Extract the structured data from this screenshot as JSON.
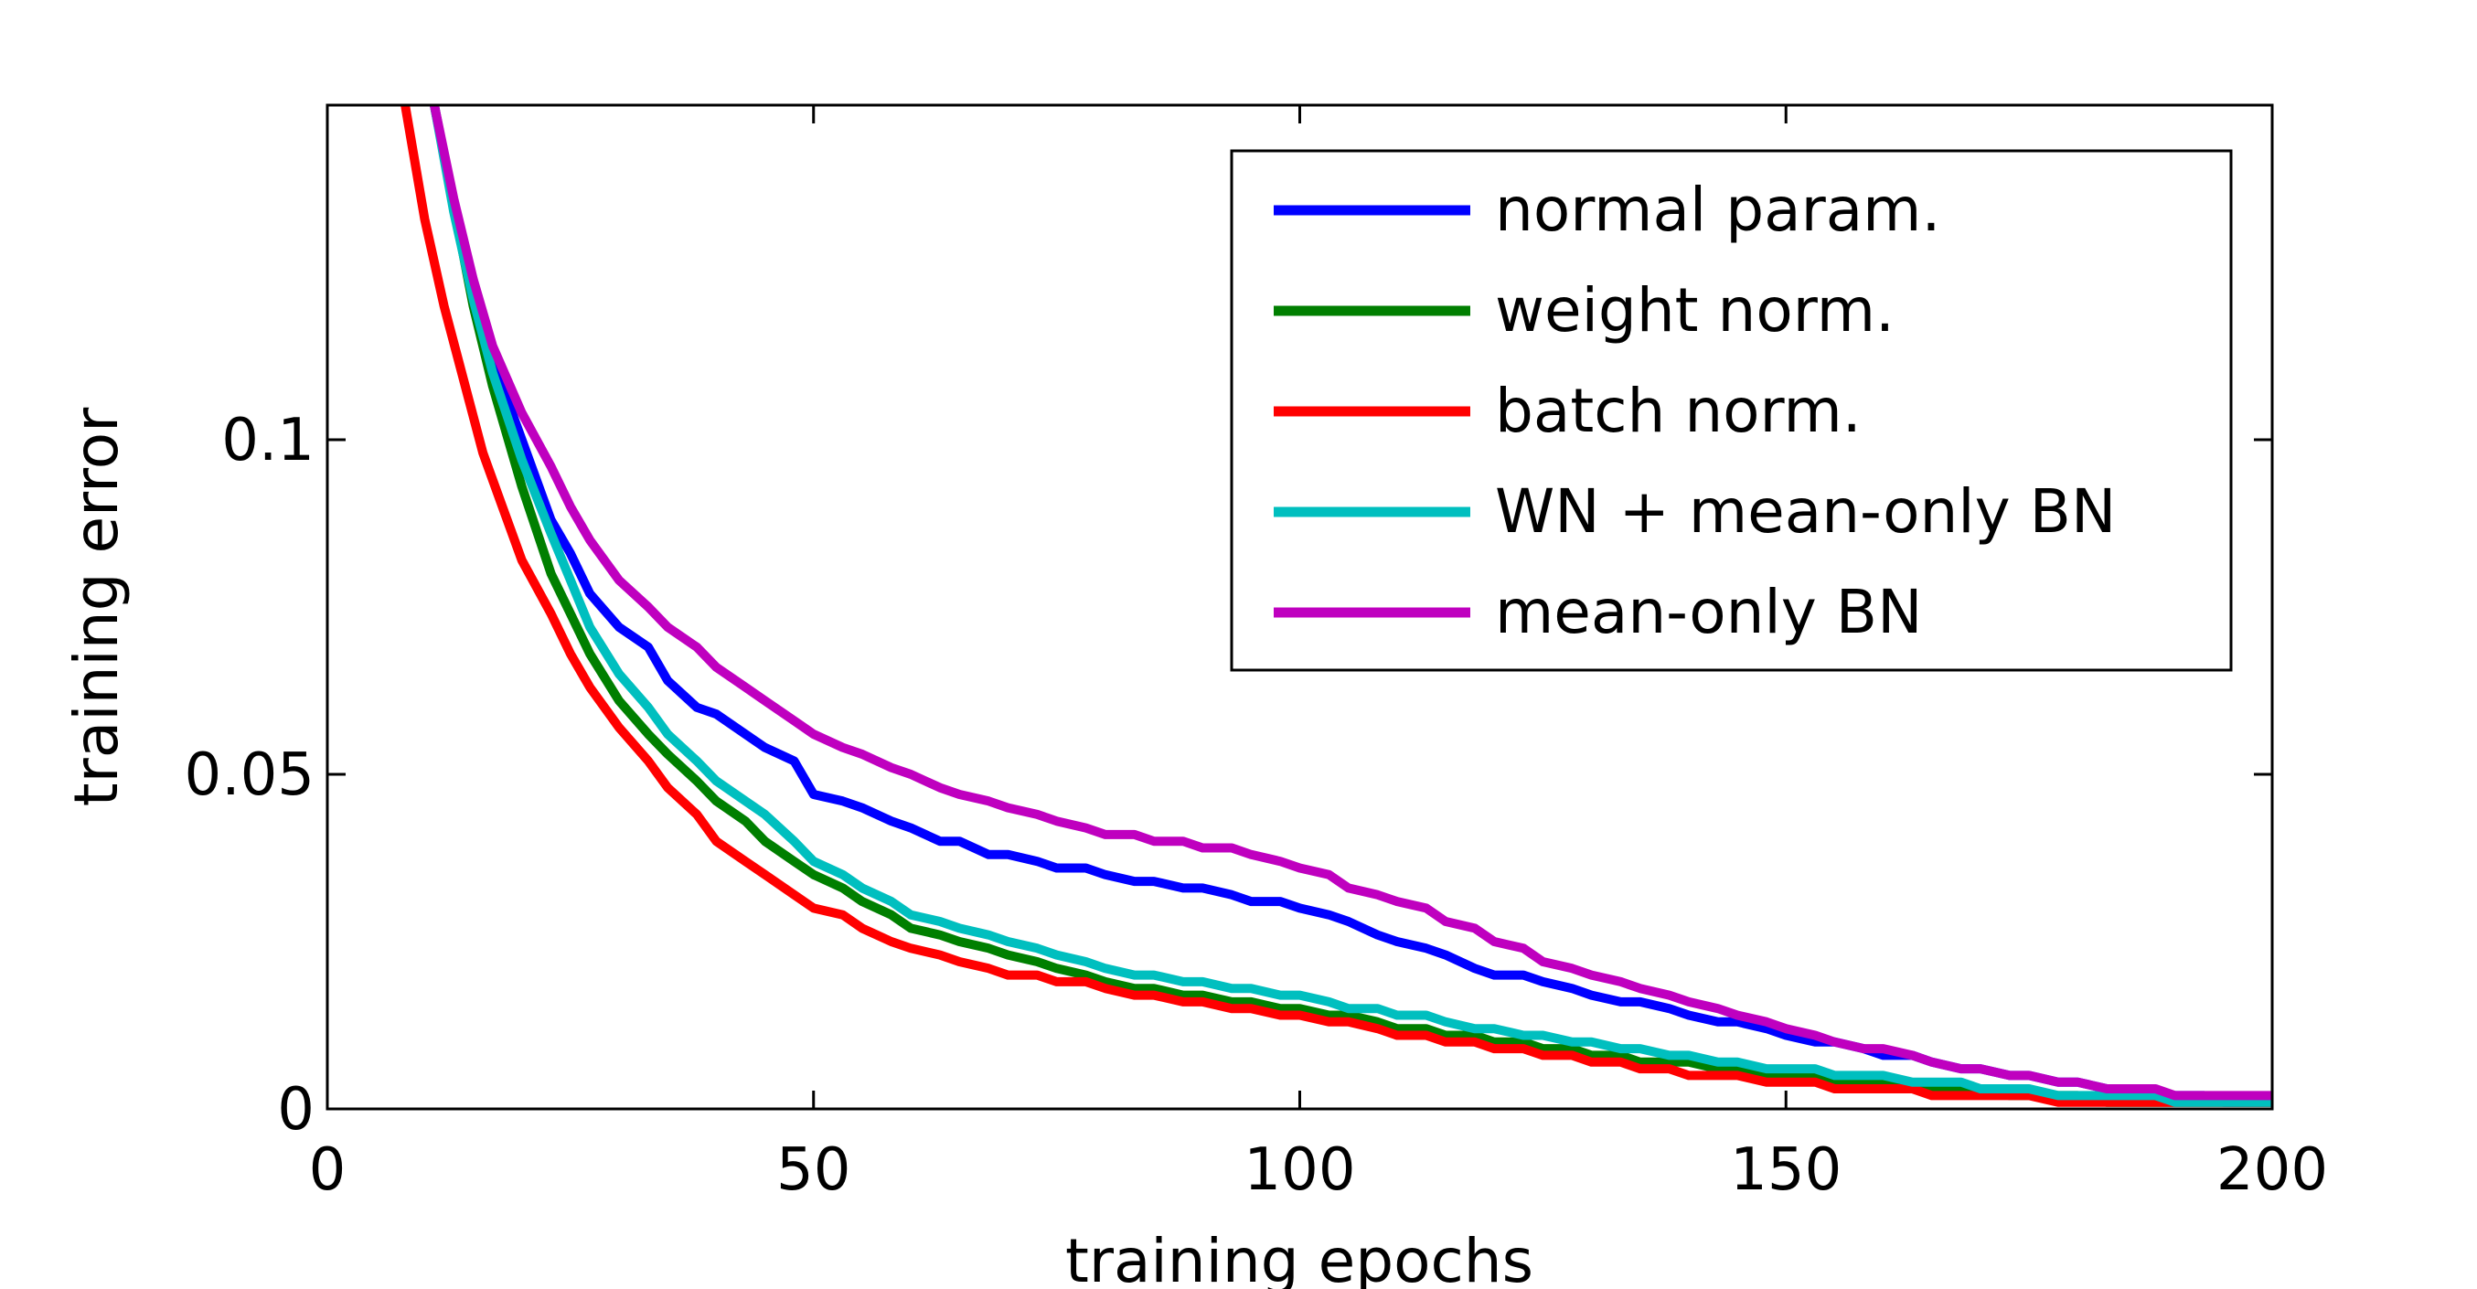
{
  "chart_data": {
    "type": "line",
    "title": "",
    "xlabel": "training epochs",
    "ylabel": "training error",
    "xlim": [
      0,
      200
    ],
    "ylim": [
      0,
      0.15
    ],
    "xticks": [
      0,
      50,
      100,
      150,
      200
    ],
    "xtick_labels": [
      "0",
      "50",
      "100",
      "150",
      "200"
    ],
    "yticks": [
      0,
      0.05,
      0.1
    ],
    "ytick_labels": [
      "0",
      "0.05",
      "0.1"
    ],
    "grid": false,
    "legend_position": "top-right",
    "series": [
      {
        "name": "normal param.",
        "color": "#0000ff",
        "x": [
          11,
          13,
          15,
          17,
          20,
          23,
          25,
          27,
          30,
          33,
          35,
          38,
          40,
          43,
          45,
          48,
          50,
          53,
          55,
          58,
          60,
          63,
          65,
          68,
          70,
          73,
          75,
          78,
          80,
          83,
          85,
          88,
          90,
          93,
          95,
          98,
          100,
          103,
          105,
          108,
          110,
          113,
          115,
          118,
          120,
          123,
          125,
          128,
          130,
          133,
          135,
          138,
          140,
          143,
          145,
          148,
          150,
          153,
          155,
          158,
          160,
          163,
          165,
          168,
          170,
          173,
          175,
          178,
          180,
          183,
          185,
          188,
          190,
          193,
          195,
          198,
          200
        ],
        "y": [
          0.15,
          0.135,
          0.122,
          0.112,
          0.1,
          0.088,
          0.083,
          0.077,
          0.072,
          0.069,
          0.064,
          0.06,
          0.059,
          0.056,
          0.054,
          0.052,
          0.047,
          0.046,
          0.045,
          0.043,
          0.042,
          0.04,
          0.04,
          0.038,
          0.038,
          0.037,
          0.036,
          0.036,
          0.035,
          0.034,
          0.034,
          0.033,
          0.033,
          0.032,
          0.031,
          0.031,
          0.03,
          0.029,
          0.028,
          0.026,
          0.025,
          0.024,
          0.023,
          0.021,
          0.02,
          0.02,
          0.019,
          0.018,
          0.017,
          0.016,
          0.016,
          0.015,
          0.014,
          0.013,
          0.013,
          0.012,
          0.011,
          0.01,
          0.01,
          0.009,
          0.008,
          0.008,
          0.007,
          0.006,
          0.006,
          0.005,
          0.005,
          0.004,
          0.004,
          0.003,
          0.003,
          0.002,
          0.002,
          0.002,
          0.001,
          0.001,
          0.001
        ]
      },
      {
        "name": "weight norm.",
        "color": "#007f00",
        "x": [
          11,
          13,
          15,
          17,
          20,
          23,
          25,
          27,
          30,
          33,
          35,
          38,
          40,
          43,
          45,
          48,
          50,
          53,
          55,
          58,
          60,
          63,
          65,
          68,
          70,
          73,
          75,
          78,
          80,
          83,
          85,
          88,
          90,
          93,
          95,
          98,
          100,
          103,
          105,
          108,
          110,
          113,
          115,
          118,
          120,
          123,
          125,
          128,
          130,
          133,
          135,
          138,
          140,
          143,
          145,
          148,
          150,
          153,
          155,
          158,
          160,
          163,
          165,
          168,
          170,
          173,
          175,
          178,
          180,
          183,
          185,
          188,
          190,
          193,
          195,
          198,
          200
        ],
        "y": [
          0.15,
          0.135,
          0.12,
          0.108,
          0.093,
          0.08,
          0.074,
          0.068,
          0.061,
          0.056,
          0.053,
          0.049,
          0.046,
          0.043,
          0.04,
          0.037,
          0.035,
          0.033,
          0.031,
          0.029,
          0.027,
          0.026,
          0.025,
          0.024,
          0.023,
          0.022,
          0.021,
          0.02,
          0.019,
          0.018,
          0.018,
          0.017,
          0.017,
          0.016,
          0.016,
          0.015,
          0.015,
          0.014,
          0.014,
          0.013,
          0.012,
          0.012,
          0.011,
          0.011,
          0.01,
          0.01,
          0.009,
          0.009,
          0.008,
          0.008,
          0.007,
          0.007,
          0.007,
          0.006,
          0.006,
          0.005,
          0.005,
          0.005,
          0.004,
          0.004,
          0.004,
          0.003,
          0.003,
          0.003,
          0.003,
          0.002,
          0.002,
          0.002,
          0.002,
          0.001,
          0.001,
          0.001,
          0.001,
          0.001,
          0.001,
          0.001,
          0.001
        ]
      },
      {
        "name": "batch norm.",
        "color": "#ff0000",
        "x": [
          8,
          10,
          12,
          14,
          16,
          18,
          20,
          23,
          25,
          27,
          30,
          33,
          35,
          38,
          40,
          43,
          45,
          48,
          50,
          53,
          55,
          58,
          60,
          63,
          65,
          68,
          70,
          73,
          75,
          78,
          80,
          83,
          85,
          88,
          90,
          93,
          95,
          98,
          100,
          103,
          105,
          108,
          110,
          113,
          115,
          118,
          120,
          123,
          125,
          128,
          130,
          133,
          135,
          138,
          140,
          143,
          145,
          148,
          150,
          153,
          155,
          158,
          160,
          163,
          165,
          168,
          170,
          173,
          175,
          178,
          180,
          183,
          185,
          188,
          190,
          193,
          195,
          198,
          200
        ],
        "y": [
          0.15,
          0.133,
          0.12,
          0.109,
          0.098,
          0.09,
          0.082,
          0.074,
          0.068,
          0.063,
          0.057,
          0.052,
          0.048,
          0.044,
          0.04,
          0.037,
          0.035,
          0.032,
          0.03,
          0.029,
          0.027,
          0.025,
          0.024,
          0.023,
          0.022,
          0.021,
          0.02,
          0.02,
          0.019,
          0.019,
          0.018,
          0.017,
          0.017,
          0.016,
          0.016,
          0.015,
          0.015,
          0.014,
          0.014,
          0.013,
          0.013,
          0.012,
          0.011,
          0.011,
          0.01,
          0.01,
          0.009,
          0.009,
          0.008,
          0.008,
          0.007,
          0.007,
          0.006,
          0.006,
          0.005,
          0.005,
          0.005,
          0.004,
          0.004,
          0.004,
          0.003,
          0.003,
          0.003,
          0.003,
          0.002,
          0.002,
          0.002,
          0.002,
          0.002,
          0.001,
          0.001,
          0.001,
          0.001,
          0.001,
          0.001,
          0.001,
          0.001,
          0.001,
          0.001
        ]
      },
      {
        "name": "WN + mean-only BN",
        "color": "#00bfbf",
        "x": [
          11,
          13,
          15,
          17,
          20,
          23,
          25,
          27,
          30,
          33,
          35,
          38,
          40,
          43,
          45,
          48,
          50,
          53,
          55,
          58,
          60,
          63,
          65,
          68,
          70,
          73,
          75,
          78,
          80,
          83,
          85,
          88,
          90,
          93,
          95,
          98,
          100,
          103,
          105,
          108,
          110,
          113,
          115,
          118,
          120,
          123,
          125,
          128,
          130,
          133,
          135,
          138,
          140,
          143,
          145,
          148,
          150,
          153,
          155,
          158,
          160,
          163,
          165,
          168,
          170,
          173,
          175,
          178,
          180,
          183,
          185,
          188,
          190,
          193,
          195,
          198,
          200
        ],
        "y": [
          0.15,
          0.134,
          0.121,
          0.11,
          0.097,
          0.086,
          0.079,
          0.072,
          0.065,
          0.06,
          0.056,
          0.052,
          0.049,
          0.046,
          0.044,
          0.04,
          0.037,
          0.035,
          0.033,
          0.031,
          0.029,
          0.028,
          0.027,
          0.026,
          0.025,
          0.024,
          0.023,
          0.022,
          0.021,
          0.02,
          0.02,
          0.019,
          0.019,
          0.018,
          0.018,
          0.017,
          0.017,
          0.016,
          0.015,
          0.015,
          0.014,
          0.014,
          0.013,
          0.012,
          0.012,
          0.011,
          0.011,
          0.01,
          0.01,
          0.009,
          0.009,
          0.008,
          0.008,
          0.007,
          0.007,
          0.006,
          0.006,
          0.006,
          0.005,
          0.005,
          0.005,
          0.004,
          0.004,
          0.004,
          0.003,
          0.003,
          0.003,
          0.002,
          0.002,
          0.002,
          0.002,
          0.002,
          0.001,
          0.001,
          0.001,
          0.001,
          0.001
        ]
      },
      {
        "name": "mean-only BN",
        "color": "#bf00bf",
        "x": [
          11,
          13,
          15,
          17,
          20,
          23,
          25,
          27,
          30,
          33,
          35,
          38,
          40,
          43,
          45,
          48,
          50,
          53,
          55,
          58,
          60,
          63,
          65,
          68,
          70,
          73,
          75,
          78,
          80,
          83,
          85,
          88,
          90,
          93,
          95,
          98,
          100,
          103,
          105,
          108,
          110,
          113,
          115,
          118,
          120,
          123,
          125,
          128,
          130,
          133,
          135,
          138,
          140,
          143,
          145,
          148,
          150,
          153,
          155,
          158,
          160,
          163,
          165,
          168,
          170,
          173,
          175,
          178,
          180,
          183,
          185,
          188,
          190,
          193,
          195,
          198,
          200
        ],
        "y": [
          0.15,
          0.136,
          0.124,
          0.114,
          0.104,
          0.096,
          0.09,
          0.085,
          0.079,
          0.075,
          0.072,
          0.069,
          0.066,
          0.063,
          0.061,
          0.058,
          0.056,
          0.054,
          0.053,
          0.051,
          0.05,
          0.048,
          0.047,
          0.046,
          0.045,
          0.044,
          0.043,
          0.042,
          0.041,
          0.041,
          0.04,
          0.04,
          0.039,
          0.039,
          0.038,
          0.037,
          0.036,
          0.035,
          0.033,
          0.032,
          0.031,
          0.03,
          0.028,
          0.027,
          0.025,
          0.024,
          0.022,
          0.021,
          0.02,
          0.019,
          0.018,
          0.017,
          0.016,
          0.015,
          0.014,
          0.013,
          0.012,
          0.011,
          0.01,
          0.009,
          0.009,
          0.008,
          0.007,
          0.006,
          0.006,
          0.005,
          0.005,
          0.004,
          0.004,
          0.003,
          0.003,
          0.003,
          0.002,
          0.002,
          0.002,
          0.002,
          0.002
        ]
      }
    ]
  }
}
